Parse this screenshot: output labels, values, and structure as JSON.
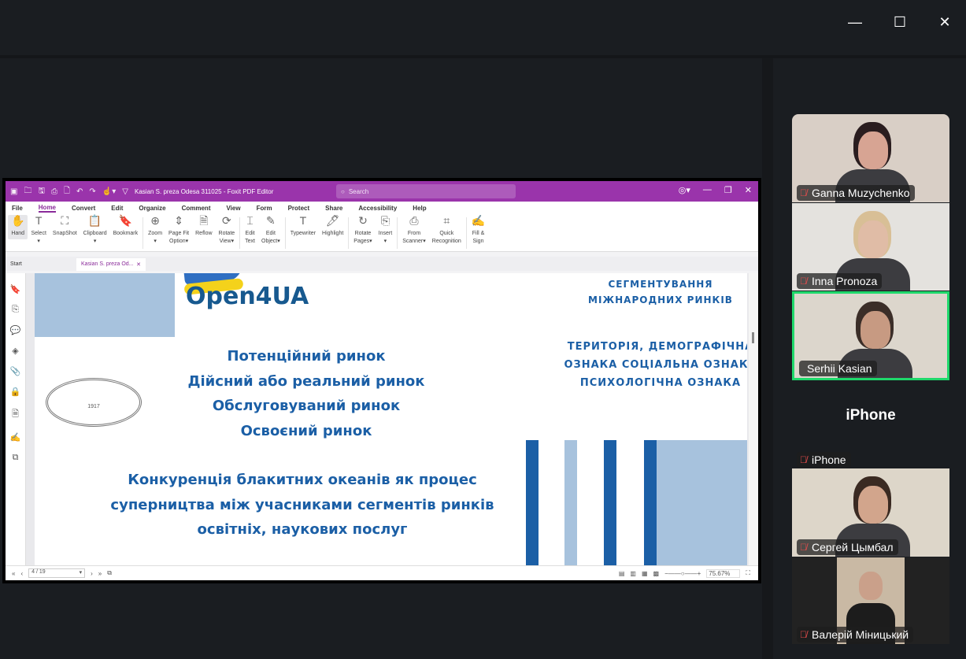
{
  "window_controls": {
    "minimize": "—",
    "maximize": "☐",
    "close": "✕"
  },
  "foxit": {
    "title": "Kasian S. preza  Odesa 311025 - Foxit PDF Editor",
    "search_placeholder": "Search",
    "menu": [
      "File",
      "Home",
      "Convert",
      "Edit",
      "Organize",
      "Comment",
      "View",
      "Form",
      "Protect",
      "Share",
      "Accessibility",
      "Help"
    ],
    "active_menu": "Home",
    "ribbon": [
      {
        "label": "Hand",
        "icon": "hand-icon",
        "glyph": "✋"
      },
      {
        "label": "Select",
        "sub": "▾",
        "icon": "select-text-icon",
        "glyph": "T"
      },
      {
        "label": "SnapShot",
        "icon": "snapshot-icon",
        "glyph": "⛶"
      },
      {
        "label": "Clipboard",
        "sub": "▾",
        "icon": "clipboard-icon",
        "glyph": "📋"
      },
      {
        "label": "Bookmark",
        "icon": "bookmark-icon",
        "glyph": "🔖"
      },
      {
        "label": "Zoom",
        "sub": "▾",
        "icon": "zoom-icon",
        "glyph": "⊕"
      },
      {
        "label": "Page Fit",
        "sub": "Option▾",
        "icon": "page-fit-icon",
        "glyph": "⇕"
      },
      {
        "label": "Reflow",
        "icon": "reflow-icon",
        "glyph": "🗎"
      },
      {
        "label": "Rotate",
        "sub": "View▾",
        "icon": "rotate-view-icon",
        "glyph": "⟳"
      },
      {
        "label": "Edit",
        "sub": "Text",
        "icon": "edit-text-icon",
        "glyph": "⌶"
      },
      {
        "label": "Edit",
        "sub": "Object▾",
        "icon": "edit-object-icon",
        "glyph": "✎"
      },
      {
        "label": "Typewriter",
        "icon": "typewriter-icon",
        "glyph": "T"
      },
      {
        "label": "Highlight",
        "icon": "highlight-icon",
        "glyph": "🖊"
      },
      {
        "label": "Rotate",
        "sub": "Pages▾",
        "icon": "rotate-pages-icon",
        "glyph": "↻"
      },
      {
        "label": "Insert",
        "sub": "▾",
        "icon": "insert-page-icon",
        "glyph": "⎘"
      },
      {
        "label": "From",
        "sub": "Scanner▾",
        "icon": "scanner-icon",
        "glyph": "⎙"
      },
      {
        "label": "Quick",
        "sub": "Recognition",
        "icon": "ocr-icon",
        "glyph": "⌗"
      },
      {
        "label": "Fill &",
        "sub": "Sign",
        "icon": "fill-sign-icon",
        "glyph": "✍"
      }
    ],
    "tabs": {
      "start": "Start",
      "doc": "Kasian S. preza  Od...",
      "close": "✕"
    },
    "status": {
      "page": "4 / 19",
      "zoom": "75.67%"
    },
    "accent": "#9a34ab"
  },
  "slide": {
    "logo": "Open4UA",
    "heading_top": [
      "СЕГМЕНТУВАННЯ",
      "МІЖНАРОДНИХ РИНКІВ"
    ],
    "heading_right": [
      "ТЕРИТОРІЯ, ДЕМОГРАФІЧНА",
      "ОЗНАКА СОЦІАЛЬНА ОЗНАКА",
      "ПСИХОЛОГІЧНА ОЗНАКА"
    ],
    "markets": [
      "Потенційний ринок",
      "Дійсний або реальний ринок",
      "Обслуговуваний ринок",
      "Освоєний ринок"
    ],
    "bottom": [
      "Конкуренція блакитних океанів як процес",
      "суперництва між учасниками сегментів ринків",
      "освітніх, наукових послуг"
    ],
    "seal_year": "1917",
    "text_color": "#1b5fa6"
  },
  "participants": [
    {
      "name": "Ganna Muzychenko",
      "muted": true
    },
    {
      "name": "Inna Pronoza",
      "muted": true
    },
    {
      "name": "Serhii Kasian",
      "muted": false,
      "speaking": true
    },
    {
      "name": "iPhone",
      "muted": true,
      "video": false,
      "label": "iPhone"
    },
    {
      "name": "Сергей Цымбал",
      "muted": true
    },
    {
      "name": "Валерій Міницький",
      "muted": true
    }
  ]
}
